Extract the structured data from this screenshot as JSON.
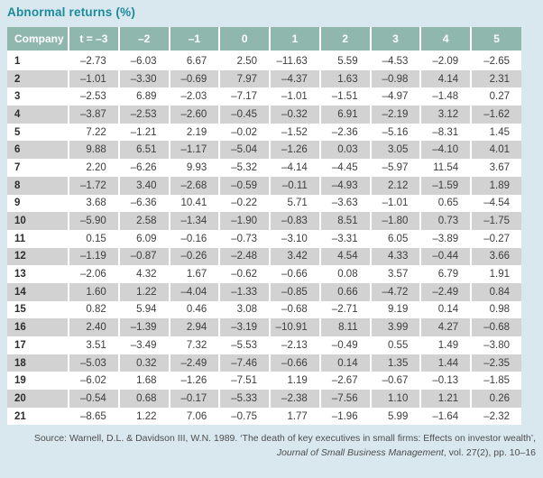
{
  "title": "Abnormal returns (%)",
  "colors": {
    "accent_teal": "#1b8a9b",
    "header_background": "#8fb7ae",
    "row_stripe": "#d2d2d2",
    "page_background": "#d9e8ef"
  },
  "table": {
    "columns": [
      "Company",
      "t = –3",
      "–2",
      "–1",
      "0",
      "1",
      "2",
      "3",
      "4",
      "5"
    ],
    "rows": [
      {
        "company": "1",
        "values": [
          "–2.73",
          "–6.03",
          "6.67",
          "2.50",
          "–11.63",
          "5.59",
          "–4.53",
          "–2.09",
          "–2.65"
        ]
      },
      {
        "company": "2",
        "values": [
          "–1.01",
          "–3.30",
          "–0.69",
          "7.97",
          "–4.37",
          "1.63",
          "–0.98",
          "4.14",
          "2.31"
        ]
      },
      {
        "company": "3",
        "values": [
          "–2.53",
          "6.89",
          "–2.03",
          "–7.17",
          "–1.01",
          "–1.51",
          "–4.97",
          "–1.48",
          "0.27"
        ]
      },
      {
        "company": "4",
        "values": [
          "–3.87",
          "–2.53",
          "–2.60",
          "–0.45",
          "–0.32",
          "6.91",
          "–2.19",
          "3.12",
          "–1.62"
        ]
      },
      {
        "company": "5",
        "values": [
          "7.22",
          "–1.21",
          "2.19",
          "–0.02",
          "–1.52",
          "–2.36",
          "–5.16",
          "–8.31",
          "1.45"
        ]
      },
      {
        "company": "6",
        "values": [
          "9.88",
          "6.51",
          "–1.17",
          "–5.04",
          "–1.26",
          "0.03",
          "3.05",
          "–4.10",
          "4.01"
        ]
      },
      {
        "company": "7",
        "values": [
          "2.20",
          "–6.26",
          "9.93",
          "–5.32",
          "–4.14",
          "–4.45",
          "–5.97",
          "11.54",
          "3.67"
        ]
      },
      {
        "company": "8",
        "values": [
          "–1.72",
          "3.40",
          "–2.68",
          "–0.59",
          "–0.11",
          "–4.93",
          "2.12",
          "–1.59",
          "1.89"
        ]
      },
      {
        "company": "9",
        "values": [
          "3.68",
          "–6.36",
          "10.41",
          "–0.22",
          "5.71",
          "–3.63",
          "–1.01",
          "0.65",
          "–4.54"
        ]
      },
      {
        "company": "10",
        "values": [
          "–5.90",
          "2.58",
          "–1.34",
          "–1.90",
          "–0.83",
          "8.51",
          "–1.80",
          "0.73",
          "–1.75"
        ]
      },
      {
        "company": "11",
        "values": [
          "0.15",
          "6.09",
          "–0.16",
          "–0.73",
          "–3.10",
          "–3.31",
          "6.05",
          "–3.89",
          "–0.27"
        ]
      },
      {
        "company": "12",
        "values": [
          "–1.19",
          "–0.87",
          "–0.26",
          "–2.48",
          "3.42",
          "4.54",
          "4.33",
          "–0.44",
          "3.66"
        ]
      },
      {
        "company": "13",
        "values": [
          "–2.06",
          "4.32",
          "1.67",
          "–0.62",
          "–0.66",
          "0.08",
          "3.57",
          "6.79",
          "1.91"
        ]
      },
      {
        "company": "14",
        "values": [
          "1.60",
          "1.22",
          "–4.04",
          "–1.33",
          "–0.85",
          "0.66",
          "–4.72",
          "–2.49",
          "0.84"
        ]
      },
      {
        "company": "15",
        "values": [
          "0.82",
          "5.94",
          "0.46",
          "3.08",
          "–0.68",
          "–2.71",
          "9.19",
          "0.14",
          "0.98"
        ]
      },
      {
        "company": "16",
        "values": [
          "2.40",
          "–1.39",
          "2.94",
          "–3.19",
          "–10.91",
          "8.11",
          "3.99",
          "4.27",
          "–0.68"
        ]
      },
      {
        "company": "17",
        "values": [
          "3.51",
          "–3.49",
          "7.32",
          "–5.53",
          "–2.13",
          "–0.49",
          "0.55",
          "1.49",
          "–3.80"
        ]
      },
      {
        "company": "18",
        "values": [
          "–5.03",
          "0.32",
          "–2.49",
          "–7.46",
          "–0.66",
          "0.14",
          "1.35",
          "1.44",
          "–2.35"
        ]
      },
      {
        "company": "19",
        "values": [
          "–6.02",
          "1.68",
          "–1.26",
          "–7.51",
          "1.19",
          "–2.67",
          "–0.67",
          "–0.13",
          "–1.85"
        ]
      },
      {
        "company": "20",
        "values": [
          "–0.54",
          "0.68",
          "–0.17",
          "–5.33",
          "–2.38",
          "–7.56",
          "1.10",
          "1.21",
          "0.26"
        ]
      },
      {
        "company": "21",
        "values": [
          "–8.65",
          "1.22",
          "7.06",
          "–0.75",
          "1.77",
          "–1.96",
          "5.99",
          "–1.64",
          "–2.32"
        ]
      }
    ]
  },
  "source": {
    "prefix": "Source: Warnell, D.L. & Davidson III, W.N. 1989. ‘The death of key executives in small firms: Effects on investor wealth’, ",
    "journal": "Journal of Small Business Management",
    "suffix": ", vol. 27(2), pp. 10–16"
  }
}
